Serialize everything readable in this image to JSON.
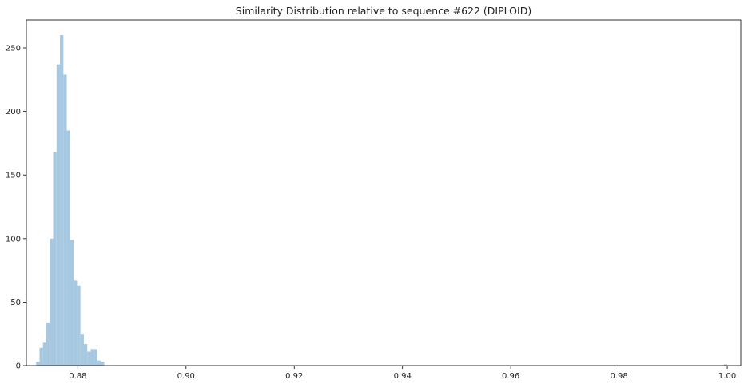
{
  "chart_data": {
    "type": "bar",
    "title": "Similarity Distribution relative to sequence #622 (DIPLOID)",
    "xlabel": "",
    "ylabel": "",
    "xlim": [
      0.8705,
      1.0025
    ],
    "ylim": [
      0,
      272
    ],
    "grid": false,
    "bar_color": "#a6c8e0",
    "x_ticks": [
      {
        "value": 0.88,
        "label": "0.88"
      },
      {
        "value": 0.9,
        "label": "0.90"
      },
      {
        "value": 0.92,
        "label": "0.92"
      },
      {
        "value": 0.94,
        "label": "0.94"
      },
      {
        "value": 0.96,
        "label": "0.96"
      },
      {
        "value": 0.98,
        "label": "0.98"
      },
      {
        "value": 1.0,
        "label": "1.00"
      }
    ],
    "y_ticks": [
      {
        "value": 0,
        "label": "0"
      },
      {
        "value": 50,
        "label": "50"
      },
      {
        "value": 100,
        "label": "100"
      },
      {
        "value": 150,
        "label": "150"
      },
      {
        "value": 200,
        "label": "200"
      },
      {
        "value": 250,
        "label": "250"
      }
    ],
    "bin_width": 0.00063,
    "bins": [
      {
        "x": 0.8723,
        "count": 3
      },
      {
        "x": 0.87293,
        "count": 14
      },
      {
        "x": 0.87356,
        "count": 18
      },
      {
        "x": 0.87419,
        "count": 34
      },
      {
        "x": 0.87482,
        "count": 100
      },
      {
        "x": 0.87545,
        "count": 168
      },
      {
        "x": 0.87608,
        "count": 237
      },
      {
        "x": 0.87671,
        "count": 260
      },
      {
        "x": 0.87734,
        "count": 229
      },
      {
        "x": 0.87797,
        "count": 185
      },
      {
        "x": 0.8786,
        "count": 99
      },
      {
        "x": 0.87923,
        "count": 67
      },
      {
        "x": 0.87986,
        "count": 63
      },
      {
        "x": 0.88049,
        "count": 25
      },
      {
        "x": 0.88112,
        "count": 17
      },
      {
        "x": 0.88175,
        "count": 11
      },
      {
        "x": 0.88238,
        "count": 13
      },
      {
        "x": 0.88301,
        "count": 13
      },
      {
        "x": 0.88364,
        "count": 4
      },
      {
        "x": 0.88427,
        "count": 3
      },
      {
        "x": 0.99937,
        "count": 1
      }
    ]
  }
}
